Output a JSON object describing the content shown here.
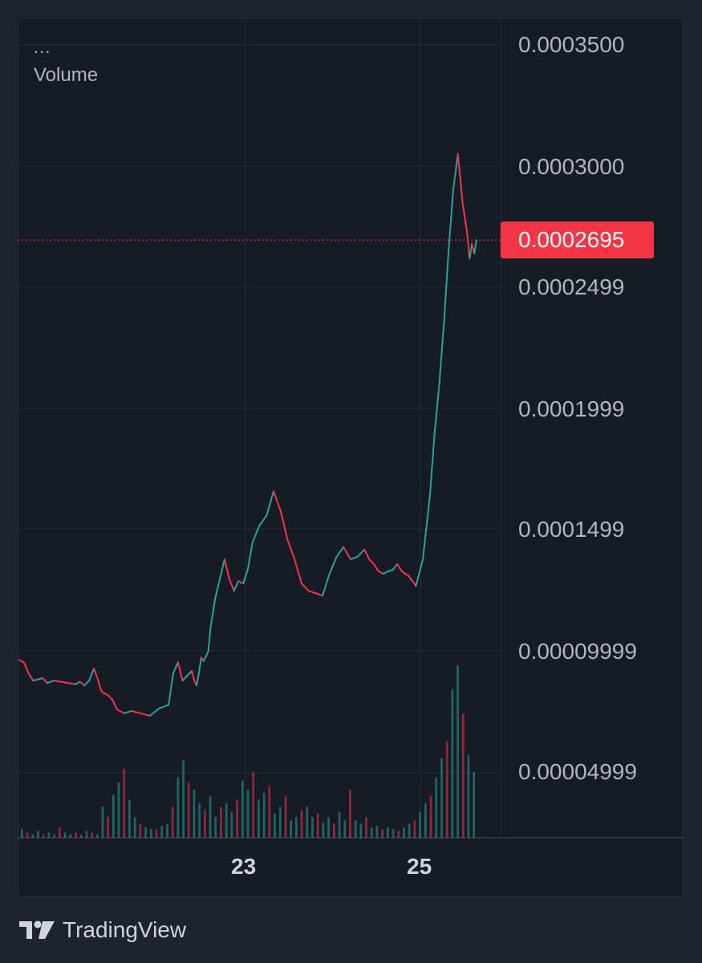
{
  "legend": {
    "dots": "...",
    "volume_label": "Volume"
  },
  "price_axis": {
    "labels": [
      "0.0003500",
      "0.0003000",
      "0.0002499",
      "0.0001999",
      "0.0001499",
      "0.00009999",
      "0.00004999"
    ],
    "last_price": "0.0002695"
  },
  "time_axis": {
    "labels": [
      "23",
      "25"
    ]
  },
  "footer": {
    "brand": "TradingView",
    "logo_icon": "tradingview-logo-icon"
  },
  "colors": {
    "background": "#171b25",
    "grid": "#2a2e39",
    "up": "#26a69a",
    "down": "#f23645",
    "text": "#b2b5be"
  },
  "chart_data": {
    "type": "line",
    "series": [
      {
        "name": "",
        "x": [
          0,
          2,
          4,
          6,
          8,
          10,
          12,
          15,
          18,
          21,
          24,
          26,
          28,
          30,
          32,
          34,
          35,
          36,
          38,
          40,
          42,
          45,
          48,
          52,
          56,
          60,
          64,
          66,
          68,
          70,
          72,
          74,
          75,
          76,
          77,
          78,
          79,
          80,
          81,
          82,
          84,
          86,
          88,
          90,
          92,
          94,
          96,
          98,
          100,
          103,
          106,
          109,
          112,
          115,
          118,
          121,
          124,
          127,
          130,
          133,
          136,
          139,
          142,
          145,
          148,
          150,
          152,
          154,
          156,
          158,
          160,
          162,
          164,
          167,
          170,
          173,
          176,
          178,
          180,
          182,
          184,
          186,
          188,
          190,
          192,
          193,
          194,
          195,
          196
        ],
        "values": [
          9.65e-05,
          9.55e-05,
          9.1e-05,
          8.8e-05,
          8.85e-05,
          8.9e-05,
          8.7e-05,
          8.8e-05,
          8.75e-05,
          8.7e-05,
          8.65e-05,
          8.75e-05,
          8.6e-05,
          8.8e-05,
          9.3e-05,
          8.75e-05,
          8.4e-05,
          8.3e-05,
          8.2e-05,
          8e-05,
          7.6e-05,
          7.45e-05,
          7.55e-05,
          7.45e-05,
          7.35e-05,
          7.65e-05,
          7.8e-05,
          9.1e-05,
          9.55e-05,
          8.8e-05,
          9e-05,
          9.2e-05,
          8.8e-05,
          8.6e-05,
          9.1e-05,
          9.75e-05,
          9.6e-05,
          9.8e-05,
          0.0001,
          0.00011,
          0.000122,
          0.00013,
          0.000138,
          0.00013,
          0.000125,
          0.000129,
          0.000128,
          0.000134,
          0.000145,
          0.000152,
          0.000156,
          0.000166,
          0.000158,
          0.000146,
          0.000138,
          0.000128,
          0.000125,
          0.000124,
          0.000123,
          0.000132,
          0.000139,
          0.000143,
          0.000138,
          0.000139,
          0.000142,
          0.000138,
          0.000136,
          0.000133,
          0.000132,
          0.000133,
          0.0001335,
          0.000136,
          0.000133,
          0.000131,
          0.000127,
          0.000138,
          0.000164,
          0.00019,
          0.00021,
          0.000235,
          0.000265,
          0.00029,
          0.000305,
          0.000285,
          0.000272,
          0.000262,
          0.000268,
          0.000264,
          0.0002695
        ]
      }
    ],
    "volume": [
      0.05,
      0.03,
      0.02,
      0.04,
      0.02,
      0.03,
      0.02,
      0.06,
      0.03,
      0.02,
      0.03,
      0.02,
      0.04,
      0.03,
      0.02,
      0.18,
      0.12,
      0.25,
      0.32,
      0.4,
      0.22,
      0.12,
      0.08,
      0.06,
      0.05,
      0.05,
      0.07,
      0.08,
      0.18,
      0.35,
      0.45,
      0.32,
      0.28,
      0.2,
      0.16,
      0.24,
      0.12,
      0.18,
      0.2,
      0.15,
      0.22,
      0.33,
      0.28,
      0.38,
      0.22,
      0.26,
      0.3,
      0.14,
      0.18,
      0.24,
      0.1,
      0.12,
      0.16,
      0.18,
      0.12,
      0.14,
      0.09,
      0.12,
      0.08,
      0.15,
      0.1,
      0.28,
      0.1,
      0.08,
      0.12,
      0.06,
      0.07,
      0.05,
      0.06,
      0.05,
      0.04,
      0.06,
      0.08,
      0.1,
      0.15,
      0.2,
      0.24,
      0.35,
      0.46,
      0.56,
      0.86,
      1.0,
      0.72,
      0.48,
      0.38
    ]
  }
}
